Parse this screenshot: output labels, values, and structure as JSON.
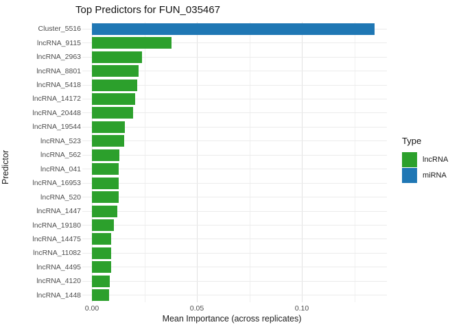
{
  "chart_data": {
    "type": "bar",
    "orientation": "horizontal",
    "title": "Top Predictors for FUN_035467",
    "xlabel": "Mean Importance (across replicates)",
    "ylabel": "Predictor",
    "xlim": [
      -0.005,
      0.141
    ],
    "x_major_ticks": [
      {
        "value": 0.0,
        "label": "0.00"
      },
      {
        "value": 0.05,
        "label": "0.05"
      },
      {
        "value": 0.1,
        "label": "0.10"
      }
    ],
    "x_minor_ticks": [
      0.025,
      0.075,
      0.125
    ],
    "grid": "major-and-minor-vertical, major-horizontal",
    "bars": [
      {
        "label": "Cluster_5516",
        "value": 0.1346,
        "type": "miRNA"
      },
      {
        "label": "lncRNA_9115",
        "value": 0.038,
        "type": "lncRNA"
      },
      {
        "label": "lncRNA_2963",
        "value": 0.0239,
        "type": "lncRNA"
      },
      {
        "label": "lncRNA_8801",
        "value": 0.0222,
        "type": "lncRNA"
      },
      {
        "label": "lncRNA_5418",
        "value": 0.0217,
        "type": "lncRNA"
      },
      {
        "label": "lncRNA_14172",
        "value": 0.0207,
        "type": "lncRNA"
      },
      {
        "label": "lncRNA_20448",
        "value": 0.0197,
        "type": "lncRNA"
      },
      {
        "label": "lncRNA_19544",
        "value": 0.0156,
        "type": "lncRNA"
      },
      {
        "label": "lncRNA_523",
        "value": 0.0154,
        "type": "lncRNA"
      },
      {
        "label": "lncRNA_562",
        "value": 0.013,
        "type": "lncRNA"
      },
      {
        "label": "lncRNA_041",
        "value": 0.0128,
        "type": "lncRNA"
      },
      {
        "label": "lncRNA_16953",
        "value": 0.0127,
        "type": "lncRNA"
      },
      {
        "label": "lncRNA_520",
        "value": 0.0127,
        "type": "lncRNA"
      },
      {
        "label": "lncRNA_1447",
        "value": 0.0122,
        "type": "lncRNA"
      },
      {
        "label": "lncRNA_19180",
        "value": 0.0105,
        "type": "lncRNA"
      },
      {
        "label": "lncRNA_14475",
        "value": 0.0092,
        "type": "lncRNA"
      },
      {
        "label": "lncRNA_11082",
        "value": 0.0092,
        "type": "lncRNA"
      },
      {
        "label": "lncRNA_4495",
        "value": 0.0091,
        "type": "lncRNA"
      },
      {
        "label": "lncRNA_4120",
        "value": 0.0086,
        "type": "lncRNA"
      },
      {
        "label": "lncRNA_1448",
        "value": 0.0083,
        "type": "lncRNA"
      }
    ],
    "colors": {
      "lncRNA": "#2ca02c",
      "miRNA": "#1f77b4"
    },
    "legend": {
      "title": "Type",
      "position": "right",
      "entries": [
        {
          "label": "lncRNA",
          "color": "#2ca02c"
        },
        {
          "label": "miRNA",
          "color": "#1f77b4"
        }
      ]
    }
  }
}
